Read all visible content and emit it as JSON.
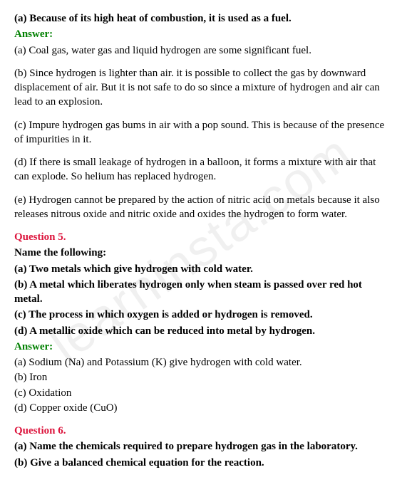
{
  "watermark": "learninsta.com",
  "colors": {
    "answer": "#008000",
    "question": "#dc143c",
    "text": "#000000",
    "background": "#ffffff",
    "watermark": "rgba(0,0,0,0.06)"
  },
  "intro": {
    "line_a": "(a) Because of its high heat of combustion, it is used as a fuel.",
    "answer_label": "Answer:",
    "ans_a": "(a) Coal gas, water gas and liquid hydrogen are some significant fuel.",
    "ans_b": "(b) Since hydrogen is lighter than air. it is possible to collect the gas by downward displacement of air. But it is not safe to do so since a mixture of hydrogen and air can lead to an explosion.",
    "ans_c": "(c) Impure hydrogen gas bums in air with a pop sound. This is because of the presence of impurities in it.",
    "ans_d": "(d) If there is small leakage of hydrogen in a balloon, it forms a mixture with air that can explode. So helium has replaced hydrogen.",
    "ans_e": "(e) Hydrogen cannot be prepared by the action of nitric acid on metals because it also releases nitrous oxide and nitric oxide and oxides the hydrogen to form water."
  },
  "q5": {
    "label": "Question 5.",
    "prompt": "Name the following:",
    "a": "(a) Two metals which give hydrogen with cold water.",
    "b": "(b) A metal which liberates hydrogen only when steam is passed over red hot metal.",
    "c": "(c) The process in which oxygen is added or hydrogen is removed.",
    "d": "(d) A metallic oxide which can be reduced into metal by hydrogen.",
    "answer_label": "Answer:",
    "ans_a": "(a) Sodium (Na) and Potassium (K) give hydrogen with cold water.",
    "ans_b": "(b) Iron",
    "ans_c": "(c) Oxidation",
    "ans_d": "(d) Copper oxide (CuO)"
  },
  "q6": {
    "label": "Question 6.",
    "a": "(a) Name the chemicals required to prepare hydrogen gas in the laboratory.",
    "b": "(b) Give a balanced chemical equation for the reaction."
  }
}
